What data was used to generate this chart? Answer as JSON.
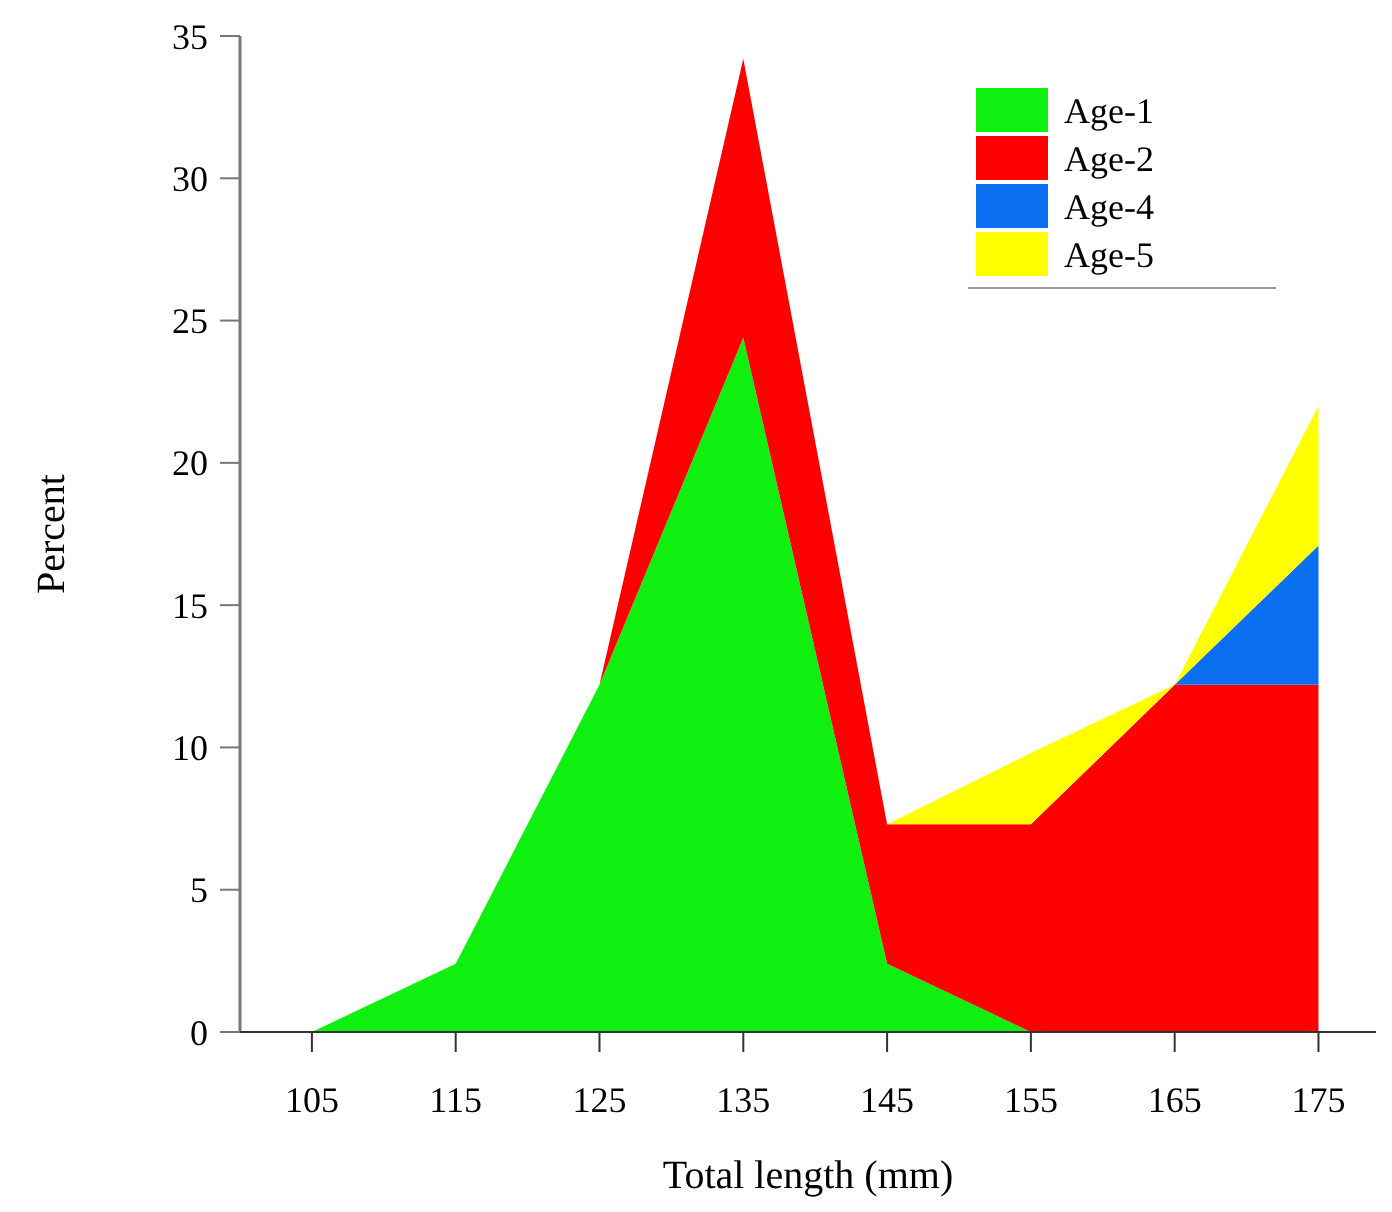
{
  "chart_data": {
    "type": "area",
    "stacked": true,
    "xlabel": "Total length (mm)",
    "ylabel": "Percent",
    "x": [
      105,
      115,
      125,
      135,
      145,
      155,
      165,
      175
    ],
    "series": [
      {
        "name": "Age-1",
        "color": "#10f010",
        "values": [
          0,
          2.4,
          12.2,
          24.4,
          2.4,
          0,
          0,
          0
        ]
      },
      {
        "name": "Age-2",
        "color": "#ff0000",
        "values": [
          0,
          0,
          0,
          9.8,
          4.9,
          7.3,
          12.2,
          12.2
        ]
      },
      {
        "name": "Age-4",
        "color": "#0a6ff0",
        "values": [
          null,
          null,
          null,
          null,
          null,
          null,
          0,
          4.9
        ]
      },
      {
        "name": "Age-5",
        "color": "#ffff00",
        "values": [
          null,
          null,
          null,
          null,
          0,
          2.5,
          0,
          4.9
        ]
      }
    ],
    "xlim": [
      100,
      179
    ],
    "ylim": [
      0,
      35
    ],
    "xticks": [
      105,
      115,
      125,
      135,
      145,
      155,
      165,
      175
    ],
    "yticks": [
      0,
      5,
      10,
      15,
      20,
      25,
      30,
      35
    ],
    "legend": "top right",
    "grid": false
  }
}
